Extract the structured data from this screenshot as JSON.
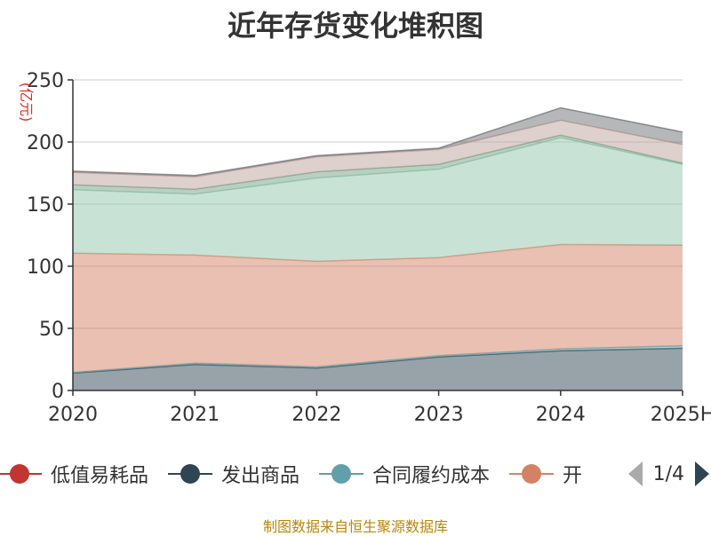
{
  "title": "近年存货变化堆积图",
  "source": "制图数据来自恒生聚源数据库",
  "chart_data": {
    "type": "area",
    "stacked": true,
    "title": "近年存货变化堆积图",
    "y_unit": "(亿元)",
    "categories": [
      "2020",
      "2021",
      "2022",
      "2023",
      "2024",
      "2025H"
    ],
    "ylim": [
      0,
      250
    ],
    "yticks": [
      0,
      50,
      100,
      150,
      200,
      250
    ],
    "grid": true,
    "series": [
      {
        "name": "低值易耗品",
        "color": "#c23531",
        "values": [
          0,
          0,
          0,
          0,
          0,
          0
        ]
      },
      {
        "name": "发出商品",
        "color": "#2f4554",
        "values": [
          14,
          21,
          18,
          27,
          32,
          34
        ]
      },
      {
        "name": "合同履约成本",
        "color": "#61a0a8",
        "values": [
          0.5,
          1,
          1,
          1,
          1.5,
          2
        ]
      },
      {
        "name": "开",
        "color": "#d48265",
        "values": [
          96,
          87,
          85,
          79,
          84,
          81
        ]
      },
      {
        "name": "",
        "color": "#91c7ae",
        "values": [
          51,
          49,
          67,
          71,
          86,
          65
        ]
      },
      {
        "name": "",
        "color": "#749f83",
        "values": [
          4,
          4,
          5,
          4,
          2,
          1
        ]
      },
      {
        "name": "",
        "color": "#ca8622",
        "values": [
          0,
          0,
          0,
          0,
          0,
          0
        ]
      },
      {
        "name": "",
        "color": "#bda29a",
        "values": [
          10,
          10,
          12,
          12,
          12,
          15
        ]
      },
      {
        "name": "",
        "color": "#6e7074",
        "values": [
          1,
          1,
          1,
          1,
          10,
          10
        ]
      }
    ],
    "legend": {
      "position": "bottom",
      "visible_items": [
        "低值易耗品",
        "发出商品",
        "合同履约成本",
        "开"
      ],
      "page": "1/4"
    }
  }
}
